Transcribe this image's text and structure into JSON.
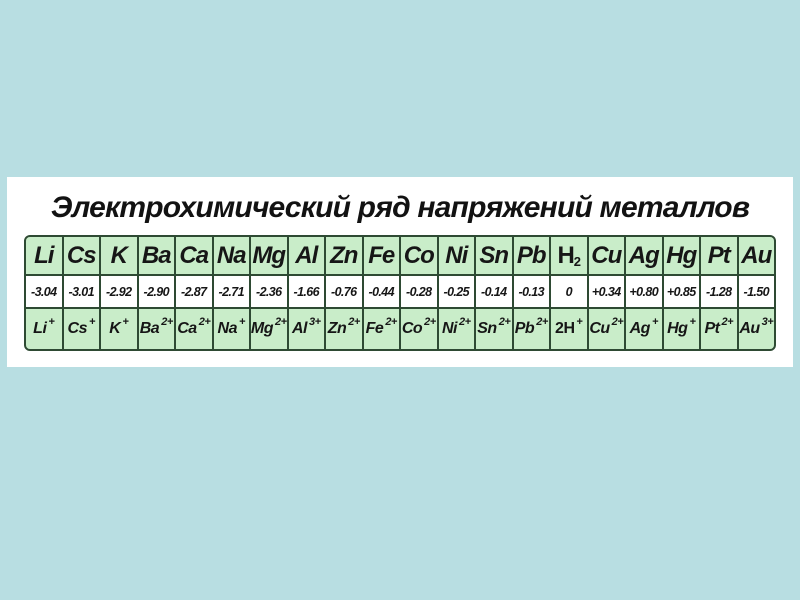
{
  "title": "Электрохимический ряд напряжений металлов",
  "colors": {
    "page_bg": "#b8dee2",
    "panel_bg": "#ffffff",
    "cell_green": "#c9edc9",
    "cell_white": "#ffffff",
    "grid_border": "#2e4a33"
  },
  "table": {
    "row_meanings": {
      "row1": "element symbols",
      "row2": "standard electrode potentials, V",
      "row3": "ion forms"
    },
    "columns": [
      {
        "symbol": "Li",
        "symbol_sub": "",
        "potential": "-3.04",
        "ion_base": "Li",
        "ion_charge": "+",
        "upright": false
      },
      {
        "symbol": "Cs",
        "symbol_sub": "",
        "potential": "-3.01",
        "ion_base": "Cs",
        "ion_charge": "+",
        "upright": false
      },
      {
        "symbol": "K",
        "symbol_sub": "",
        "potential": "-2.92",
        "ion_base": "K",
        "ion_charge": "+",
        "upright": false
      },
      {
        "symbol": "Ba",
        "symbol_sub": "",
        "potential": "-2.90",
        "ion_base": "Ba",
        "ion_charge": "2+",
        "upright": false
      },
      {
        "symbol": "Ca",
        "symbol_sub": "",
        "potential": "-2.87",
        "ion_base": "Ca",
        "ion_charge": "2+",
        "upright": false
      },
      {
        "symbol": "Na",
        "symbol_sub": "",
        "potential": "-2.71",
        "ion_base": "Na",
        "ion_charge": "+",
        "upright": false
      },
      {
        "symbol": "Mg",
        "symbol_sub": "",
        "potential": "-2.36",
        "ion_base": "Mg",
        "ion_charge": "2+",
        "upright": false
      },
      {
        "symbol": "Al",
        "symbol_sub": "",
        "potential": "-1.66",
        "ion_base": "Al",
        "ion_charge": "3+",
        "upright": false
      },
      {
        "symbol": "Zn",
        "symbol_sub": "",
        "potential": "-0.76",
        "ion_base": "Zn",
        "ion_charge": "2+",
        "upright": false
      },
      {
        "symbol": "Fe",
        "symbol_sub": "",
        "potential": "-0.44",
        "ion_base": "Fe",
        "ion_charge": "2+",
        "upright": false
      },
      {
        "symbol": "Co",
        "symbol_sub": "",
        "potential": "-0.28",
        "ion_base": "Co",
        "ion_charge": "2+",
        "upright": false
      },
      {
        "symbol": "Ni",
        "symbol_sub": "",
        "potential": "-0.25",
        "ion_base": "Ni",
        "ion_charge": "2+",
        "upright": false
      },
      {
        "symbol": "Sn",
        "symbol_sub": "",
        "potential": "-0.14",
        "ion_base": "Sn",
        "ion_charge": "2+",
        "upright": false
      },
      {
        "symbol": "Pb",
        "symbol_sub": "",
        "potential": "-0.13",
        "ion_base": "Pb",
        "ion_charge": "2+",
        "upright": false
      },
      {
        "symbol": "H",
        "symbol_sub": "2",
        "potential": "0",
        "ion_base": "2H",
        "ion_charge": "+",
        "upright": true
      },
      {
        "symbol": "Cu",
        "symbol_sub": "",
        "potential": "+0.34",
        "ion_base": "Cu",
        "ion_charge": "2+",
        "upright": false
      },
      {
        "symbol": "Ag",
        "symbol_sub": "",
        "potential": "+0.80",
        "ion_base": "Ag",
        "ion_charge": "+",
        "upright": false
      },
      {
        "symbol": "Hg",
        "symbol_sub": "",
        "potential": "+0.85",
        "ion_base": "Hg",
        "ion_charge": "+",
        "upright": false
      },
      {
        "symbol": "Pt",
        "symbol_sub": "",
        "potential": "-1.28",
        "ion_base": "Pt",
        "ion_charge": "2+",
        "upright": false
      },
      {
        "symbol": "Au",
        "symbol_sub": "",
        "potential": "-1.50",
        "ion_base": "Au",
        "ion_charge": "3+",
        "upright": false
      }
    ]
  }
}
